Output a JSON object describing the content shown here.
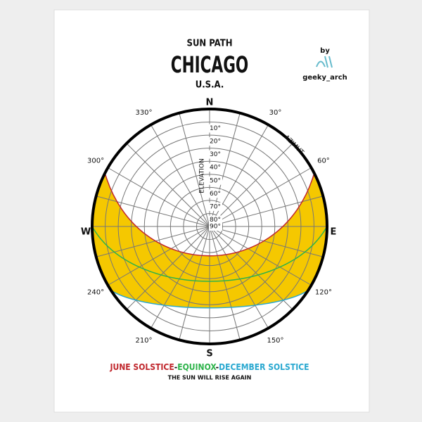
{
  "header": {
    "title": "SUN PATH",
    "city": "CHICAGO",
    "country": "U.S.A.",
    "credit_by": "by",
    "credit_name": "geeky_arch"
  },
  "compass": {
    "north": "N",
    "east": "E",
    "south": "S",
    "west": "W"
  },
  "azimuth_label": "AZIMUT",
  "elevation_label": "ELEVATION",
  "azimuth_ticks": [
    "30°",
    "60°",
    "120°",
    "150°",
    "210°",
    "240°",
    "300°",
    "330°"
  ],
  "elevation_ticks": [
    "10°",
    "20°",
    "30°",
    "40°",
    "50°",
    "60°",
    "70°",
    "80°",
    "90°"
  ],
  "legend": {
    "june": "JUNE SOLSTICE",
    "sep1": "-",
    "equinox": "EQUINOX",
    "sep2": "-",
    "december": "DECEMBER SOLSTICE"
  },
  "tagline": "THE SUN WILL RISE AGAIN"
}
